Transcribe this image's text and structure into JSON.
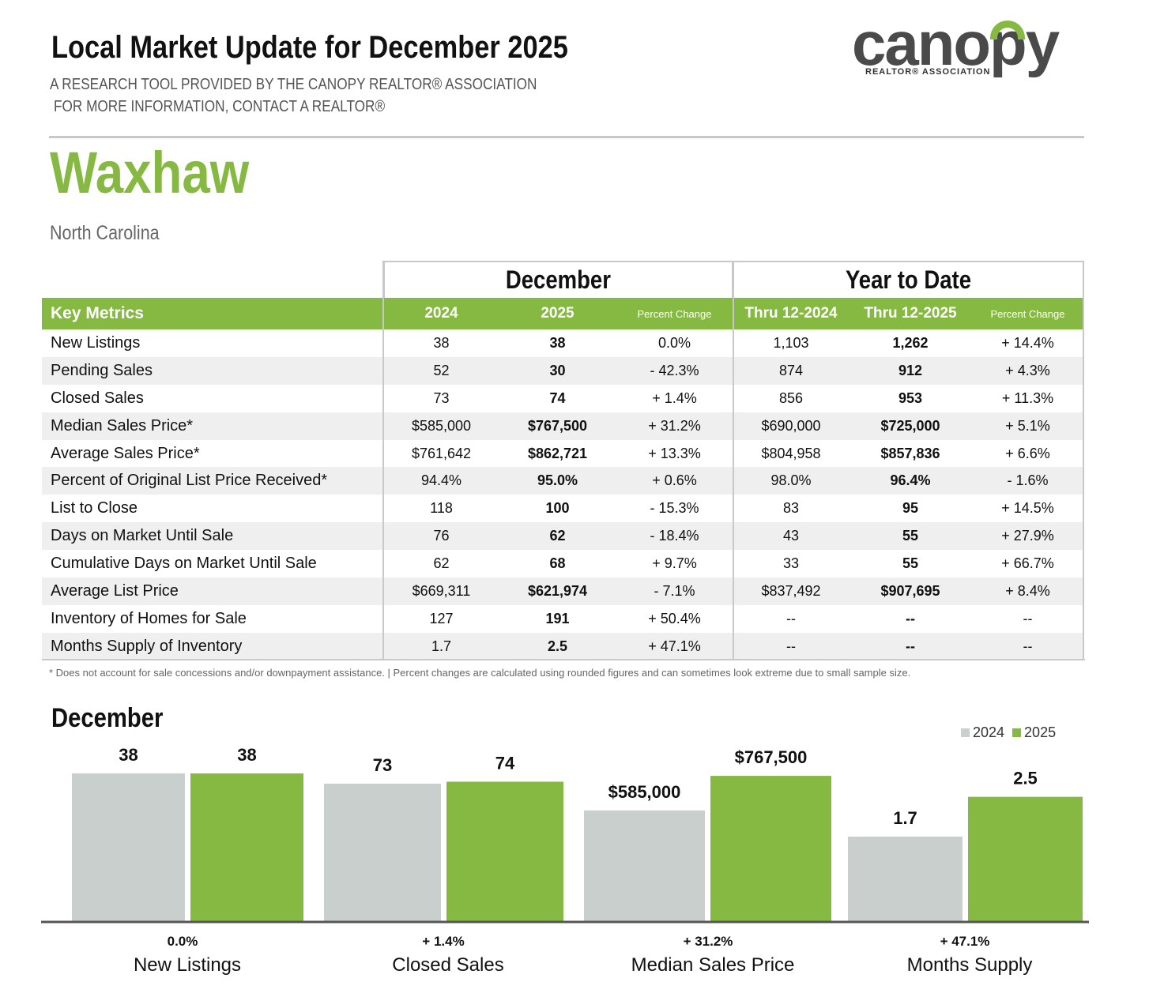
{
  "header": {
    "title": "Local Market Update for December 2025",
    "subtitle_line1": "A RESEARCH TOOL PROVIDED BY THE CANOPY REALTOR® ASSOCIATION",
    "subtitle_line2": "FOR MORE INFORMATION, CONTACT A REALTOR®",
    "logo_text": "canopy",
    "logo_subtext": "REALTOR® ASSOCIATION"
  },
  "location": {
    "city": "Waxhaw",
    "state": "North Carolina"
  },
  "table": {
    "group_month": "December",
    "group_ytd": "Year to Date",
    "columns": {
      "key_metrics": "Key Metrics",
      "month_prev": "2024",
      "month_cur": "2025",
      "month_pct": "Percent Change",
      "ytd_prev": "Thru 12-2024",
      "ytd_cur": "Thru 12-2025",
      "ytd_pct": "Percent Change"
    },
    "rows": [
      [
        "New Listings",
        "38",
        "38",
        "0.0%",
        "1,103",
        "1,262",
        "+ 14.4%"
      ],
      [
        "Pending Sales",
        "52",
        "30",
        "- 42.3%",
        "874",
        "912",
        "+ 4.3%"
      ],
      [
        "Closed Sales",
        "73",
        "74",
        "+ 1.4%",
        "856",
        "953",
        "+ 11.3%"
      ],
      [
        "Median Sales Price*",
        "$585,000",
        "$767,500",
        "+ 31.2%",
        "$690,000",
        "$725,000",
        "+ 5.1%"
      ],
      [
        "Average Sales Price*",
        "$761,642",
        "$862,721",
        "+ 13.3%",
        "$804,958",
        "$857,836",
        "+ 6.6%"
      ],
      [
        "Percent of Original List Price Received*",
        "94.4%",
        "95.0%",
        "+ 0.6%",
        "98.0%",
        "96.4%",
        "- 1.6%"
      ],
      [
        "List to Close",
        "118",
        "100",
        "- 15.3%",
        "83",
        "95",
        "+ 14.5%"
      ],
      [
        "Days on Market Until Sale",
        "76",
        "62",
        "- 18.4%",
        "43",
        "55",
        "+ 27.9%"
      ],
      [
        "Cumulative Days on Market Until Sale",
        "62",
        "68",
        "+ 9.7%",
        "33",
        "55",
        "+ 66.7%"
      ],
      [
        "Average List Price",
        "$669,311",
        "$621,974",
        "- 7.1%",
        "$837,492",
        "$907,695",
        "+ 8.4%"
      ],
      [
        "Inventory of Homes for Sale",
        "127",
        "191",
        "+ 50.4%",
        "--",
        "--",
        "--"
      ],
      [
        "Months Supply of Inventory",
        "1.7",
        "2.5",
        "+ 47.1%",
        "--",
        "--",
        "--"
      ]
    ],
    "footnote": "* Does not account for sale concessions and/or downpayment assistance.  |  Percent changes are calculated using rounded figures and can sometimes look extreme due to small sample size."
  },
  "colors": {
    "green": "#86b942",
    "gray": "#c9cfcd",
    "rule": "#c8c8c8"
  },
  "chart_data": {
    "type": "bar",
    "title": "December",
    "legend": [
      "2024",
      "2025"
    ],
    "legend_position": "top-right",
    "groups": [
      {
        "category": "New Listings",
        "pct": "0.0%",
        "prev": 38,
        "cur": 38,
        "prev_label": "38",
        "cur_label": "38"
      },
      {
        "category": "Closed Sales",
        "pct": "+ 1.4%",
        "prev": 73,
        "cur": 74,
        "prev_label": "73",
        "cur_label": "74"
      },
      {
        "category": "Median Sales Price",
        "pct": "+ 31.2%",
        "prev": 585000,
        "cur": 767500,
        "prev_label": "$585,000",
        "cur_label": "$767,500"
      },
      {
        "category": "Months Supply",
        "pct": "+ 47.1%",
        "prev": 1.7,
        "cur": 2.5,
        "prev_label": "1.7",
        "cur_label": "2.5"
      }
    ]
  }
}
